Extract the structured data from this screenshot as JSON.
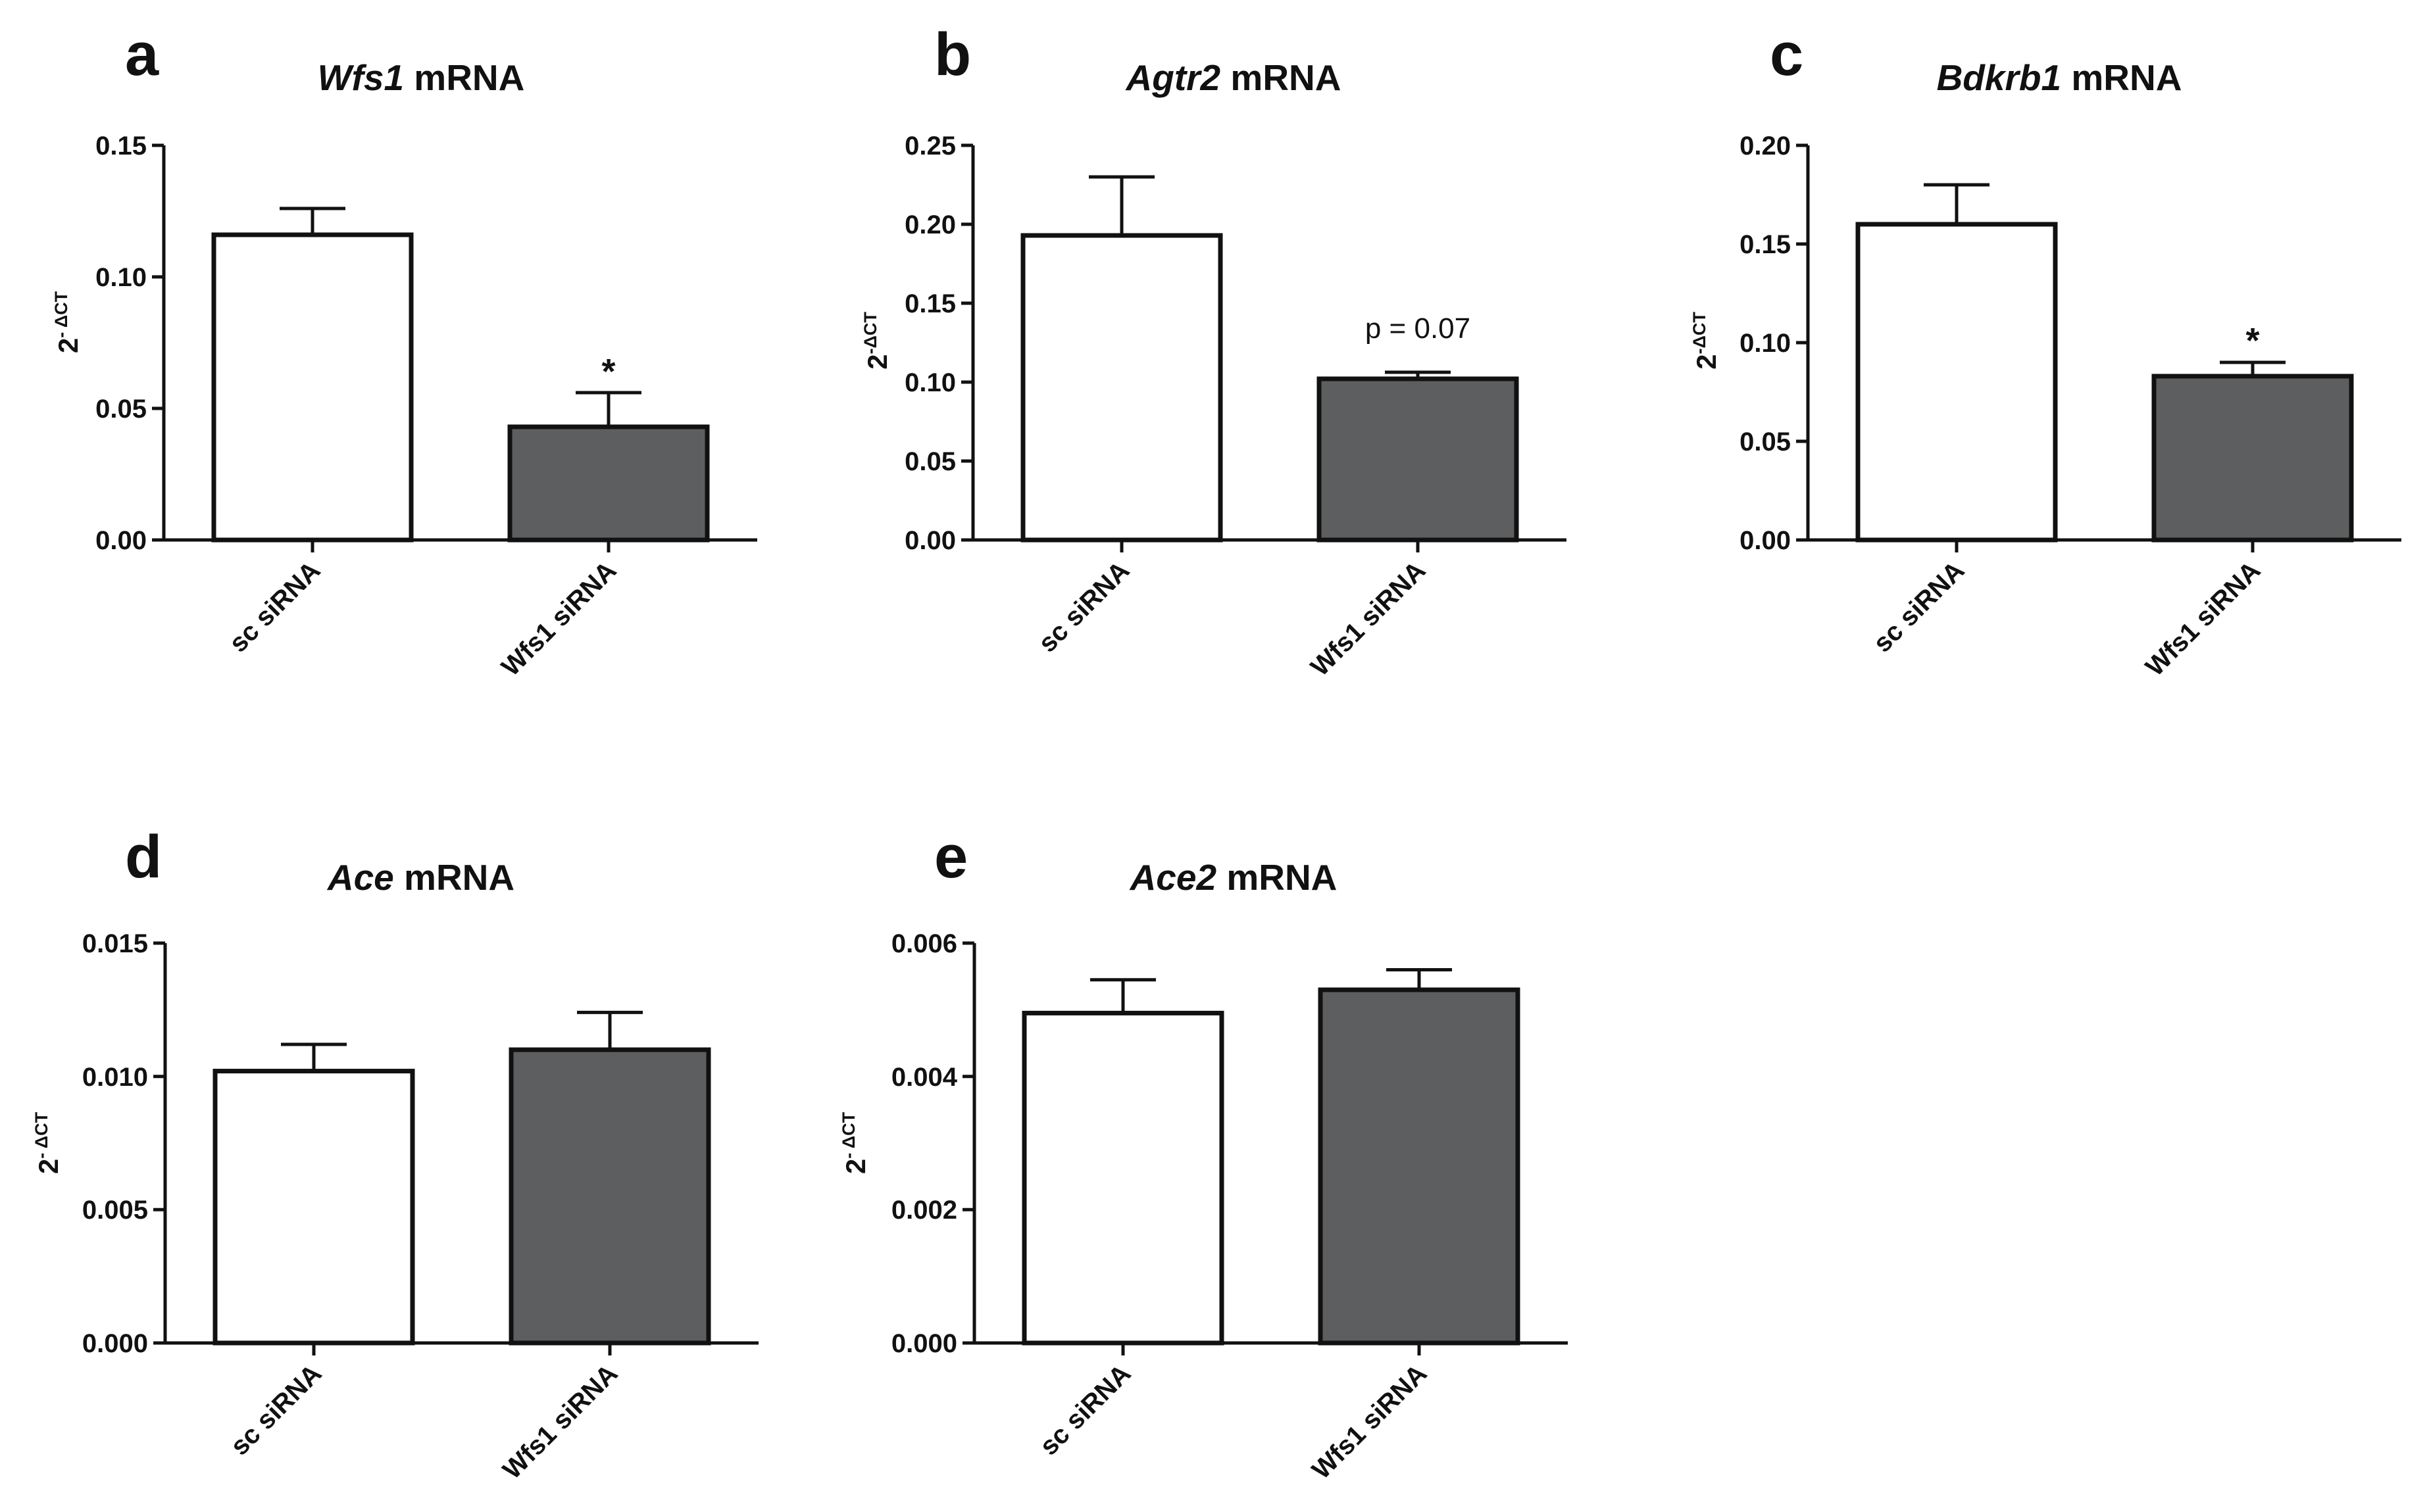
{
  "figure": {
    "bar_colors": {
      "sc siRNA": "#ffffff",
      "Wfs1 siRNA": "#5d5e5f"
    },
    "outline_color": "#111111"
  },
  "chart_data": [
    {
      "panel": "a",
      "type": "bar",
      "title": {
        "gene": "Wfs1",
        "rest": " mRNA"
      },
      "ylabel": {
        "base": "2",
        "sup": "- ΔCT"
      },
      "categories": [
        "sc siRNA",
        "Wfs1 siRNA"
      ],
      "values": [
        0.116,
        0.043
      ],
      "errors": [
        0.01,
        0.013
      ],
      "ylim": [
        0,
        0.15
      ],
      "yticks": [
        0.0,
        0.05,
        0.1,
        0.15
      ],
      "tick_labels": [
        "0.00",
        "0.05",
        "0.10",
        "0.15"
      ],
      "annotation": {
        "text": "*",
        "bar": 1
      }
    },
    {
      "panel": "b",
      "type": "bar",
      "title": {
        "gene": "Agtr2",
        "rest": " mRNA"
      },
      "ylabel": {
        "base": "2",
        "sup": "-ΔCT"
      },
      "categories": [
        "sc siRNA",
        "Wfs1 siRNA"
      ],
      "values": [
        0.193,
        0.102
      ],
      "errors": [
        0.037,
        0.004
      ],
      "ylim": [
        0,
        0.25
      ],
      "yticks": [
        0.0,
        0.05,
        0.1,
        0.15,
        0.2,
        0.25
      ],
      "tick_labels": [
        "0.00",
        "0.05",
        "0.10",
        "0.15",
        "0.20",
        "0.25"
      ],
      "annotation": {
        "text": "p = 0.07",
        "bar": 1
      }
    },
    {
      "panel": "c",
      "type": "bar",
      "title": {
        "gene": "Bdkrb1",
        "rest": " mRNA"
      },
      "ylabel": {
        "base": "2",
        "sup": "-ΔCT"
      },
      "categories": [
        "sc siRNA",
        "Wfs1 siRNA"
      ],
      "values": [
        0.16,
        0.083
      ],
      "errors": [
        0.02,
        0.007
      ],
      "ylim": [
        0,
        0.2
      ],
      "yticks": [
        0.0,
        0.05,
        0.1,
        0.15,
        0.2
      ],
      "tick_labels": [
        "0.00",
        "0.05",
        "0.10",
        "0.15",
        "0.20"
      ],
      "annotation": {
        "text": "*",
        "bar": 1
      }
    },
    {
      "panel": "d",
      "type": "bar",
      "title": {
        "gene": "Ace",
        "rest": " mRNA"
      },
      "ylabel": {
        "base": "2",
        "sup": "- ΔCT"
      },
      "categories": [
        "sc siRNA",
        "Wfs1 siRNA"
      ],
      "values": [
        0.0102,
        0.011
      ],
      "errors": [
        0.001,
        0.0014
      ],
      "ylim": [
        0,
        0.015
      ],
      "yticks": [
        0.0,
        0.005,
        0.01,
        0.015
      ],
      "tick_labels": [
        "0.000",
        "0.005",
        "0.010",
        "0.015"
      ],
      "annotation": null
    },
    {
      "panel": "e",
      "type": "bar",
      "title": {
        "gene": "Ace2",
        "rest": " mRNA"
      },
      "ylabel": {
        "base": "2",
        "sup": "- ΔCT"
      },
      "categories": [
        "sc siRNA",
        "Wfs1 siRNA"
      ],
      "values": [
        0.00495,
        0.0053
      ],
      "errors": [
        0.0005,
        0.0003
      ],
      "ylim": [
        0,
        0.006
      ],
      "yticks": [
        0.0,
        0.002,
        0.004,
        0.006
      ],
      "tick_labels": [
        "0.000",
        "0.002",
        "0.004",
        "0.006"
      ],
      "annotation": null
    }
  ]
}
